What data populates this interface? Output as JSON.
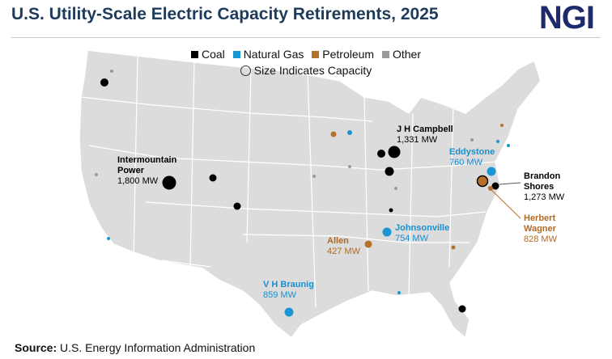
{
  "header": {
    "title": "U.S. Utility-Scale Electric Capacity Retirements, 2025",
    "logo": "NGI"
  },
  "legend": {
    "items": [
      "Coal",
      "Natural Gas",
      "Petroleum",
      "Other"
    ],
    "size_note": "Size Indicates Capacity"
  },
  "plants": [
    {
      "name": "J H Campbell",
      "capacity": "1,331 MW"
    },
    {
      "name": "Intermountain Power",
      "capacity": "1,800 MW"
    },
    {
      "name": "Eddystone",
      "capacity": "760 MW"
    },
    {
      "name": "Brandon Shores",
      "capacity": "1,273 MW"
    },
    {
      "name": "Johnsonville",
      "capacity": "754 MW"
    },
    {
      "name": "Allen",
      "capacity": "427 MW"
    },
    {
      "name": "Herbert Wagner",
      "capacity": "828 MW"
    },
    {
      "name": "V H Braunig",
      "capacity": "859 MW"
    }
  ],
  "source": {
    "label": "Source:",
    "text": "U.S. Energy Information Administration"
  }
}
